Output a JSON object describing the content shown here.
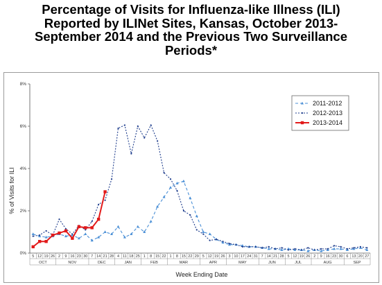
{
  "title_lines": [
    "Percentage of Visits for Influenza-like Illness (ILI)",
    "Reported by ILINet Sites, Kansas, October 2013-",
    "September 2014 and the Previous Two Surveillance",
    "Periods*"
  ],
  "chart_data": {
    "type": "line",
    "xlabel": "Week Ending Date",
    "ylabel": "% of Visits for ILI",
    "ylim": [
      0,
      8
    ],
    "yticks": [
      "0%",
      "2%",
      "4%",
      "6%",
      "8%"
    ],
    "x_tick_labels": [
      "5",
      "12",
      "19",
      "26",
      "2",
      "9",
      "16",
      "23",
      "30",
      "7",
      "14",
      "21",
      "28",
      "4",
      "11",
      "18",
      "25",
      "1",
      "8",
      "15",
      "22",
      "1",
      "8",
      "15",
      "22",
      "29",
      "5",
      "12",
      "19",
      "26",
      "3",
      "10",
      "17",
      "24",
      "31",
      "7",
      "14",
      "21",
      "28",
      "5",
      "12",
      "19",
      "26",
      "2",
      "9",
      "16",
      "23",
      "30",
      "6",
      "13",
      "20",
      "27"
    ],
    "months": [
      "OCT",
      "NOV",
      "DEC",
      "JAN",
      "FEB",
      "MAR",
      "APR",
      "MAY",
      "JUN",
      "JUL",
      "AUG",
      "SEP"
    ],
    "month_starts": [
      0,
      4,
      9,
      13,
      17,
      21,
      26,
      30,
      35,
      39,
      43,
      48
    ],
    "legend_position": "top-right",
    "grid": false,
    "series": [
      {
        "name": "2011-2012",
        "color": "#4a8fd6",
        "marker": "triangle",
        "dash": "4,3",
        "values": [
          0.9,
          0.8,
          0.75,
          0.8,
          0.9,
          0.8,
          0.85,
          0.7,
          0.9,
          0.6,
          0.75,
          1.0,
          0.9,
          1.25,
          0.75,
          0.9,
          1.25,
          1.0,
          1.5,
          2.2,
          2.65,
          3.1,
          3.3,
          3.4,
          2.6,
          1.75,
          1.0,
          0.9,
          0.65,
          0.5,
          0.4,
          0.4,
          0.35,
          0.3,
          0.3,
          0.25,
          0.2,
          0.2,
          0.15,
          0.2,
          0.15,
          0.15,
          0.1,
          0.15,
          0.1,
          0.15,
          0.2,
          0.2,
          0.15,
          0.2,
          0.25,
          0.15
        ]
      },
      {
        "name": "2012-2013",
        "color": "#1d3c8c",
        "marker": "dot",
        "dash": "2,2",
        "values": [
          0.8,
          0.85,
          1.05,
          0.85,
          1.6,
          1.15,
          0.9,
          1.3,
          1.1,
          1.5,
          2.3,
          2.5,
          3.5,
          5.9,
          6.05,
          4.7,
          6.0,
          5.45,
          6.05,
          5.3,
          3.8,
          3.5,
          2.95,
          2.0,
          1.8,
          1.1,
          0.9,
          0.6,
          0.65,
          0.55,
          0.45,
          0.4,
          0.3,
          0.3,
          0.3,
          0.25,
          0.3,
          0.2,
          0.25,
          0.15,
          0.2,
          0.15,
          0.25,
          0.15,
          0.2,
          0.2,
          0.35,
          0.3,
          0.2,
          0.25,
          0.3,
          0.25
        ]
      },
      {
        "name": "2013-2014",
        "color": "#e21a1a",
        "marker": "square",
        "dash": "",
        "values": [
          0.3,
          0.55,
          0.55,
          0.85,
          0.95,
          1.05,
          0.7,
          1.25,
          1.2,
          1.2,
          1.6,
          2.9
        ]
      }
    ]
  }
}
